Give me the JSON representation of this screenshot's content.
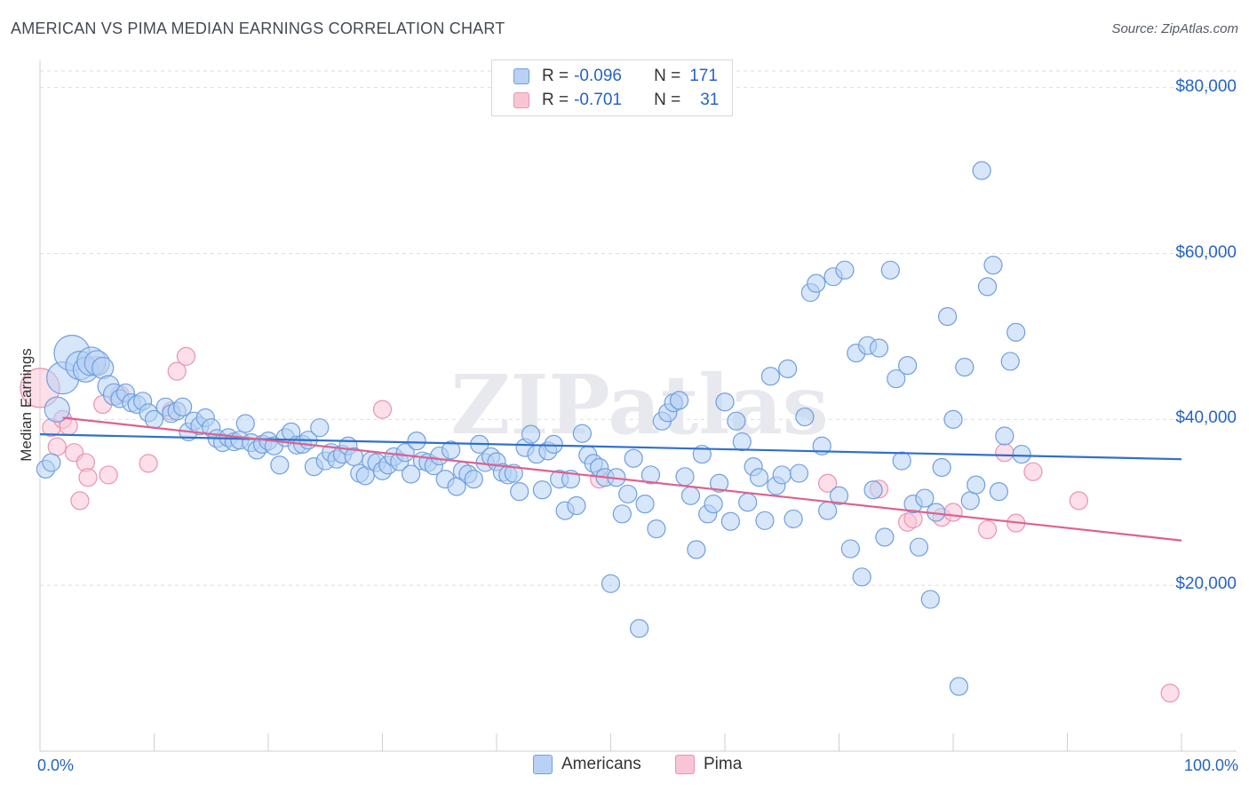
{
  "title": "AMERICAN VS PIMA MEDIAN EARNINGS CORRELATION CHART",
  "source": "Source: ZipAtlas.com",
  "watermark": "ZIPatlas",
  "legend_top": {
    "rows": [
      {
        "r_label": "R =",
        "r_value": "-0.096",
        "n_label": "N =",
        "n_value": "171",
        "color": "#b7d2f4"
      },
      {
        "r_label": "R =",
        "r_value": "-0.701",
        "n_label": "N =",
        "n_value": "31",
        "color": "#f9c5d5"
      }
    ]
  },
  "chart_data": {
    "type": "scatter",
    "xlabel": "",
    "ylabel": "Median Earnings",
    "xlim": [
      0,
      100
    ],
    "ylim": [
      0,
      82000
    ],
    "x_tick_labels": [
      "0.0%",
      "100.0%"
    ],
    "y_ticks": [
      20000,
      40000,
      60000,
      80000
    ],
    "y_tick_labels": [
      "$20,000",
      "$40,000",
      "$60,000",
      "$80,000"
    ],
    "grid": true,
    "legend": {
      "position": "bottom",
      "entries": [
        "Americans",
        "Pima"
      ]
    },
    "series": [
      {
        "name": "Americans",
        "color": "#6f9fe0",
        "fill": "#b7d2f4",
        "trend": {
          "x": [
            0,
            100
          ],
          "y": [
            38200,
            35200
          ],
          "color": "#2f6fd0"
        },
        "points": [
          [
            0.5,
            34000,
            10
          ],
          [
            1,
            34800,
            10
          ],
          [
            1.5,
            41200,
            14
          ],
          [
            2,
            45000,
            18
          ],
          [
            2.8,
            48000,
            20
          ],
          [
            3.5,
            46500,
            16
          ],
          [
            4,
            46000,
            14
          ],
          [
            4.5,
            47000,
            16
          ],
          [
            5,
            46800,
            14
          ],
          [
            5.5,
            46200,
            12
          ],
          [
            6,
            44000,
            12
          ],
          [
            6.5,
            43000,
            12
          ],
          [
            7,
            42500,
            10
          ],
          [
            7.5,
            43200,
            10
          ],
          [
            8,
            42000,
            10
          ],
          [
            8.5,
            41800,
            10
          ],
          [
            9,
            42200,
            10
          ],
          [
            9.5,
            40800,
            10
          ],
          [
            10,
            40000,
            10
          ],
          [
            11,
            41500,
            10
          ],
          [
            11.5,
            40700,
            10
          ],
          [
            12,
            41000,
            10
          ],
          [
            12.5,
            41500,
            10
          ],
          [
            13,
            38500,
            10
          ],
          [
            13.5,
            39800,
            10
          ],
          [
            14,
            39200,
            10
          ],
          [
            14.5,
            40200,
            10
          ],
          [
            15,
            39000,
            10
          ],
          [
            15.5,
            37700,
            10
          ],
          [
            16,
            37200,
            10
          ],
          [
            16.5,
            37800,
            10
          ],
          [
            17,
            37300,
            10
          ],
          [
            17.5,
            37500,
            10
          ],
          [
            18,
            39500,
            10
          ],
          [
            18.5,
            37200,
            10
          ],
          [
            19,
            36300,
            10
          ],
          [
            19.5,
            37000,
            10
          ],
          [
            20,
            37400,
            10
          ],
          [
            20.5,
            36800,
            10
          ],
          [
            21,
            34500,
            10
          ],
          [
            21.5,
            37800,
            10
          ],
          [
            22,
            38500,
            10
          ],
          [
            22.5,
            36900,
            10
          ],
          [
            23,
            37000,
            10
          ],
          [
            23.5,
            37500,
            10
          ],
          [
            24,
            34300,
            10
          ],
          [
            24.5,
            39000,
            10
          ],
          [
            25,
            35000,
            10
          ],
          [
            25.5,
            36000,
            10
          ],
          [
            26,
            35200,
            10
          ],
          [
            26.5,
            35800,
            10
          ],
          [
            27,
            36800,
            10
          ],
          [
            27.5,
            35500,
            10
          ],
          [
            28,
            33500,
            10
          ],
          [
            28.5,
            33200,
            10
          ],
          [
            29,
            35000,
            10
          ],
          [
            29.5,
            34800,
            10
          ],
          [
            30,
            33800,
            10
          ],
          [
            30.5,
            34500,
            10
          ],
          [
            31,
            35500,
            10
          ],
          [
            31.5,
            34900,
            10
          ],
          [
            32,
            36000,
            10
          ],
          [
            32.5,
            33400,
            10
          ],
          [
            33,
            37400,
            10
          ],
          [
            33.5,
            35000,
            10
          ],
          [
            34,
            34800,
            10
          ],
          [
            34.5,
            34400,
            10
          ],
          [
            35,
            35600,
            10
          ],
          [
            35.5,
            32800,
            10
          ],
          [
            36,
            36300,
            10
          ],
          [
            36.5,
            31900,
            10
          ],
          [
            37,
            33800,
            10
          ],
          [
            37.5,
            33400,
            10
          ],
          [
            38,
            32800,
            10
          ],
          [
            38.5,
            37000,
            10
          ],
          [
            39,
            34800,
            10
          ],
          [
            39.5,
            35500,
            10
          ],
          [
            40,
            34900,
            10
          ],
          [
            40.5,
            33600,
            10
          ],
          [
            41,
            33300,
            10
          ],
          [
            41.5,
            33500,
            10
          ],
          [
            42,
            31300,
            10
          ],
          [
            42.5,
            36600,
            10
          ],
          [
            43,
            38200,
            10
          ],
          [
            43.5,
            35800,
            10
          ],
          [
            44,
            31500,
            10
          ],
          [
            44.5,
            36200,
            10
          ],
          [
            45,
            37000,
            10
          ],
          [
            45.5,
            32800,
            10
          ],
          [
            46,
            29000,
            10
          ],
          [
            46.5,
            32800,
            10
          ],
          [
            47,
            29600,
            10
          ],
          [
            47.5,
            38300,
            10
          ],
          [
            48,
            35700,
            10
          ],
          [
            48.5,
            34700,
            10
          ],
          [
            49,
            34200,
            10
          ],
          [
            49.5,
            33000,
            10
          ],
          [
            50,
            20200,
            10
          ],
          [
            50.5,
            33000,
            10
          ],
          [
            51,
            28600,
            10
          ],
          [
            51.5,
            31000,
            10
          ],
          [
            52,
            35300,
            10
          ],
          [
            52.5,
            14800,
            10
          ],
          [
            53,
            29800,
            10
          ],
          [
            53.5,
            33300,
            10
          ],
          [
            54,
            26800,
            10
          ],
          [
            54.5,
            39800,
            10
          ],
          [
            55,
            40800,
            10
          ],
          [
            55.5,
            42000,
            10
          ],
          [
            56,
            42300,
            10
          ],
          [
            56.5,
            33100,
            10
          ],
          [
            57,
            30800,
            10
          ],
          [
            57.5,
            24300,
            10
          ],
          [
            58,
            35800,
            10
          ],
          [
            58.5,
            28600,
            10
          ],
          [
            59,
            29800,
            10
          ],
          [
            59.5,
            32300,
            10
          ],
          [
            60,
            42100,
            10
          ],
          [
            60.5,
            27700,
            10
          ],
          [
            61,
            39800,
            10
          ],
          [
            61.5,
            37300,
            10
          ],
          [
            62,
            30000,
            10
          ],
          [
            62.5,
            34300,
            10
          ],
          [
            63,
            33000,
            10
          ],
          [
            63.5,
            27800,
            10
          ],
          [
            64,
            45200,
            10
          ],
          [
            64.5,
            32000,
            10
          ],
          [
            65,
            33300,
            10
          ],
          [
            65.5,
            46100,
            10
          ],
          [
            66,
            28000,
            10
          ],
          [
            66.5,
            33500,
            10
          ],
          [
            67,
            40300,
            10
          ],
          [
            67.5,
            55300,
            10
          ],
          [
            68,
            56400,
            10
          ],
          [
            68.5,
            36800,
            10
          ],
          [
            69,
            29000,
            10
          ],
          [
            69.5,
            57200,
            10
          ],
          [
            70,
            30800,
            10
          ],
          [
            70.5,
            58000,
            10
          ],
          [
            71,
            24400,
            10
          ],
          [
            71.5,
            48000,
            10
          ],
          [
            72,
            21000,
            10
          ],
          [
            72.5,
            48900,
            10
          ],
          [
            73,
            31500,
            10
          ],
          [
            73.5,
            48600,
            10
          ],
          [
            74,
            25800,
            10
          ],
          [
            74.5,
            58000,
            10
          ],
          [
            75,
            44900,
            10
          ],
          [
            75.5,
            35000,
            10
          ],
          [
            76,
            46500,
            10
          ],
          [
            76.5,
            29800,
            10
          ],
          [
            77,
            24600,
            10
          ],
          [
            77.5,
            30500,
            10
          ],
          [
            78,
            18300,
            10
          ],
          [
            78.5,
            28800,
            10
          ],
          [
            79,
            34200,
            10
          ],
          [
            79.5,
            52400,
            10
          ],
          [
            80,
            40000,
            10
          ],
          [
            80.5,
            7800,
            10
          ],
          [
            81,
            46300,
            10
          ],
          [
            81.5,
            30200,
            10
          ],
          [
            82,
            32100,
            10
          ],
          [
            82.5,
            70000,
            10
          ],
          [
            83,
            56000,
            10
          ],
          [
            83.5,
            58600,
            10
          ],
          [
            84,
            31300,
            10
          ],
          [
            84.5,
            38000,
            10
          ],
          [
            85,
            47000,
            10
          ],
          [
            85.5,
            50500,
            10
          ],
          [
            86,
            35800,
            10
          ]
        ]
      },
      {
        "name": "Pima",
        "color": "#e993b0",
        "fill": "#f9c5d5",
        "trend": {
          "x": [
            2,
            100
          ],
          "y": [
            40200,
            25400
          ],
          "color": "#e0608e"
        },
        "points": [
          [
            0,
            43800,
            22
          ],
          [
            1,
            39000,
            10
          ],
          [
            1.5,
            36700,
            10
          ],
          [
            2,
            40000,
            10
          ],
          [
            2.5,
            39200,
            10
          ],
          [
            3,
            36000,
            10
          ],
          [
            3.5,
            30200,
            10
          ],
          [
            4,
            34800,
            10
          ],
          [
            4.2,
            33000,
            10
          ],
          [
            5,
            46500,
            10
          ],
          [
            5.5,
            41800,
            10
          ],
          [
            6,
            33300,
            10
          ],
          [
            7,
            43000,
            10
          ],
          [
            9.5,
            34700,
            10
          ],
          [
            11.5,
            41000,
            10
          ],
          [
            12,
            45800,
            10
          ],
          [
            12.8,
            47600,
            10
          ],
          [
            30,
            41200,
            10
          ],
          [
            49,
            32800,
            10
          ],
          [
            69,
            32300,
            10
          ],
          [
            73.5,
            31600,
            10
          ],
          [
            76,
            27600,
            10
          ],
          [
            76.5,
            28000,
            10
          ],
          [
            79,
            28200,
            10
          ],
          [
            80,
            28800,
            10
          ],
          [
            83,
            26700,
            10
          ],
          [
            84.5,
            36000,
            10
          ],
          [
            85.5,
            27500,
            10
          ],
          [
            87,
            33700,
            10
          ],
          [
            91,
            30200,
            10
          ],
          [
            99,
            7000,
            10
          ]
        ]
      }
    ]
  }
}
